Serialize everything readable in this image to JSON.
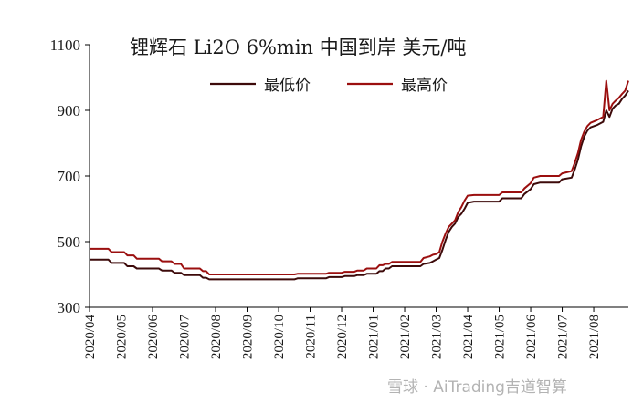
{
  "chart_data": {
    "type": "line",
    "title": "锂辉石 Li2O 6%min 中国到岸 美元/吨",
    "xlabel": "",
    "ylabel": "",
    "ylim": [
      300,
      1100
    ],
    "yticks": [
      300,
      500,
      700,
      900,
      1100
    ],
    "xticks": [
      "2020/04",
      "2020/05",
      "2020/06",
      "2020/07",
      "2020/08",
      "2020/09",
      "2020/10",
      "2020/11",
      "2020/12",
      "2021/01",
      "2021/02",
      "2021/03",
      "2021/04",
      "2021/05",
      "2021/06",
      "2021/07",
      "2021/08"
    ],
    "legend_position": "top-center",
    "grid": false,
    "series": [
      {
        "name": "最低价",
        "color": "#3d0a0a",
        "points": [
          [
            0,
            445
          ],
          [
            0.6,
            445
          ],
          [
            0.7,
            435
          ],
          [
            1.1,
            435
          ],
          [
            1.2,
            425
          ],
          [
            1.4,
            425
          ],
          [
            1.5,
            418
          ],
          [
            2.2,
            418
          ],
          [
            2.3,
            412
          ],
          [
            2.6,
            412
          ],
          [
            2.7,
            405
          ],
          [
            2.9,
            405
          ],
          [
            3.0,
            398
          ],
          [
            3.5,
            398
          ],
          [
            3.6,
            390
          ],
          [
            3.7,
            390
          ],
          [
            3.8,
            385
          ],
          [
            4.5,
            385
          ],
          [
            5.0,
            385
          ],
          [
            6.0,
            385
          ],
          [
            6.5,
            385
          ],
          [
            6.6,
            388
          ],
          [
            7.5,
            388
          ],
          [
            7.6,
            392
          ],
          [
            8.0,
            392
          ],
          [
            8.1,
            395
          ],
          [
            8.4,
            395
          ],
          [
            8.5,
            398
          ],
          [
            8.7,
            398
          ],
          [
            8.8,
            402
          ],
          [
            9.1,
            402
          ],
          [
            9.2,
            410
          ],
          [
            9.3,
            410
          ],
          [
            9.4,
            418
          ],
          [
            9.5,
            418
          ],
          [
            9.6,
            425
          ],
          [
            10.0,
            425
          ],
          [
            10.5,
            425
          ],
          [
            10.6,
            432
          ],
          [
            10.8,
            435
          ],
          [
            10.9,
            440
          ],
          [
            11.0,
            445
          ],
          [
            11.1,
            450
          ],
          [
            11.2,
            475
          ],
          [
            11.3,
            505
          ],
          [
            11.4,
            530
          ],
          [
            11.5,
            545
          ],
          [
            11.6,
            555
          ],
          [
            11.7,
            575
          ],
          [
            11.8,
            585
          ],
          [
            11.9,
            600
          ],
          [
            12.0,
            618
          ],
          [
            12.2,
            622
          ],
          [
            13.0,
            622
          ],
          [
            13.1,
            632
          ],
          [
            13.7,
            632
          ],
          [
            13.8,
            645
          ],
          [
            14.0,
            660
          ],
          [
            14.1,
            675
          ],
          [
            14.3,
            680
          ],
          [
            14.9,
            680
          ],
          [
            15.0,
            690
          ],
          [
            15.3,
            695
          ],
          [
            15.4,
            720
          ],
          [
            15.5,
            750
          ],
          [
            15.6,
            790
          ],
          [
            15.7,
            820
          ],
          [
            15.8,
            838
          ],
          [
            15.9,
            848
          ],
          [
            16.1,
            855
          ],
          [
            16.3,
            865
          ],
          [
            16.4,
            900
          ],
          [
            16.5,
            880
          ],
          [
            16.6,
            905
          ],
          [
            16.7,
            915
          ],
          [
            16.8,
            920
          ],
          [
            16.9,
            935
          ],
          [
            17.0,
            945
          ],
          [
            17.1,
            960
          ]
        ]
      },
      {
        "name": "最高价",
        "color": "#9b0f0f",
        "points": [
          [
            0,
            478
          ],
          [
            0.6,
            478
          ],
          [
            0.7,
            468
          ],
          [
            1.1,
            468
          ],
          [
            1.2,
            458
          ],
          [
            1.4,
            458
          ],
          [
            1.5,
            448
          ],
          [
            2.2,
            448
          ],
          [
            2.3,
            440
          ],
          [
            2.6,
            440
          ],
          [
            2.7,
            432
          ],
          [
            2.9,
            432
          ],
          [
            3.0,
            418
          ],
          [
            3.5,
            418
          ],
          [
            3.6,
            410
          ],
          [
            3.7,
            410
          ],
          [
            3.8,
            400
          ],
          [
            4.5,
            400
          ],
          [
            5.0,
            400
          ],
          [
            6.0,
            400
          ],
          [
            6.5,
            400
          ],
          [
            6.6,
            402
          ],
          [
            7.5,
            402
          ],
          [
            7.6,
            405
          ],
          [
            8.0,
            405
          ],
          [
            8.1,
            408
          ],
          [
            8.4,
            408
          ],
          [
            8.5,
            412
          ],
          [
            8.7,
            412
          ],
          [
            8.8,
            418
          ],
          [
            9.1,
            418
          ],
          [
            9.2,
            428
          ],
          [
            9.3,
            428
          ],
          [
            9.4,
            432
          ],
          [
            9.5,
            432
          ],
          [
            9.6,
            438
          ],
          [
            10.0,
            438
          ],
          [
            10.5,
            438
          ],
          [
            10.6,
            450
          ],
          [
            10.8,
            455
          ],
          [
            10.9,
            460
          ],
          [
            11.0,
            462
          ],
          [
            11.1,
            468
          ],
          [
            11.2,
            500
          ],
          [
            11.3,
            525
          ],
          [
            11.4,
            545
          ],
          [
            11.5,
            555
          ],
          [
            11.6,
            565
          ],
          [
            11.7,
            590
          ],
          [
            11.8,
            605
          ],
          [
            11.9,
            625
          ],
          [
            12.0,
            640
          ],
          [
            12.2,
            642
          ],
          [
            13.0,
            642
          ],
          [
            13.1,
            650
          ],
          [
            13.7,
            650
          ],
          [
            13.8,
            662
          ],
          [
            14.0,
            678
          ],
          [
            14.1,
            695
          ],
          [
            14.3,
            700
          ],
          [
            14.9,
            700
          ],
          [
            15.0,
            708
          ],
          [
            15.3,
            715
          ],
          [
            15.4,
            740
          ],
          [
            15.5,
            770
          ],
          [
            15.6,
            810
          ],
          [
            15.7,
            835
          ],
          [
            15.8,
            852
          ],
          [
            15.9,
            862
          ],
          [
            16.1,
            870
          ],
          [
            16.3,
            880
          ],
          [
            16.4,
            990
          ],
          [
            16.5,
            900
          ],
          [
            16.6,
            920
          ],
          [
            16.7,
            930
          ],
          [
            16.8,
            938
          ],
          [
            16.9,
            950
          ],
          [
            17.0,
            960
          ],
          [
            17.1,
            990
          ]
        ]
      }
    ]
  },
  "watermark": {
    "text": "雪球 · AiTrading吉道智算"
  }
}
